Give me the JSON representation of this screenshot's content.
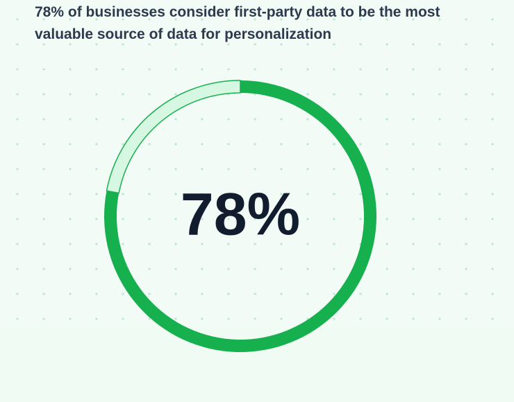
{
  "chart_data": {
    "type": "donut",
    "title": "78% of businesses consider first-party data to be the most valuable source of data for personalization",
    "values": [
      78
    ],
    "value_labels": [
      "78%"
    ],
    "ylim": [
      0,
      100
    ],
    "color": "#17b04f",
    "track_color": "#d6f8e2"
  }
}
